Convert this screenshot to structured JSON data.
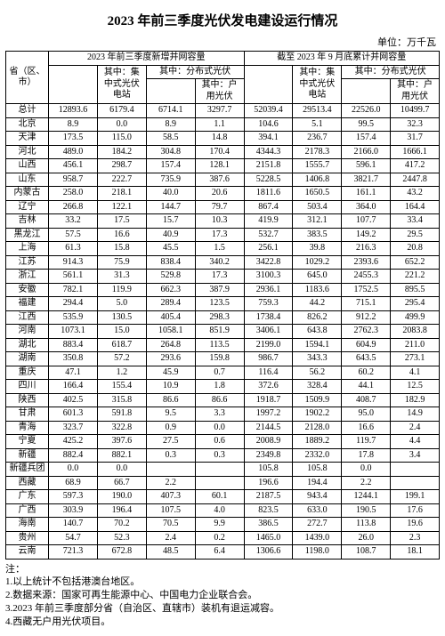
{
  "title": "2023 年前三季度光伏发电建设运行情况",
  "unit": "单位：万千瓦",
  "header_group_a": "2023 年前三季度新增并网容量",
  "header_group_b": "截至 2023 年 9 月底累计并网容量",
  "col_region": "省（区、市）",
  "col_a_sub1": "其中：集中式光伏电站",
  "col_a_sub2": "其中：分布式光伏",
  "col_a_sub2a": "其中：户用光伏",
  "col_b_sub1": "其中：集中式光伏电站",
  "col_b_sub2": "其中：分布式光伏",
  "col_b_sub2a": "其中：户用光伏",
  "rows": [
    {
      "r": "总计",
      "a": "12893.6",
      "a1": "6179.4",
      "a2": "6714.1",
      "a2a": "3297.7",
      "b": "52039.4",
      "b1": "29513.4",
      "b2": "22526.0",
      "b2a": "10499.7"
    },
    {
      "r": "北京",
      "a": "8.9",
      "a1": "0.0",
      "a2": "8.9",
      "a2a": "1.1",
      "b": "104.6",
      "b1": "5.1",
      "b2": "99.5",
      "b2a": "32.3"
    },
    {
      "r": "天津",
      "a": "173.5",
      "a1": "115.0",
      "a2": "58.5",
      "a2a": "14.8",
      "b": "394.1",
      "b1": "236.7",
      "b2": "157.4",
      "b2a": "31.7"
    },
    {
      "r": "河北",
      "a": "489.0",
      "a1": "184.2",
      "a2": "304.8",
      "a2a": "170.4",
      "b": "4344.3",
      "b1": "2178.3",
      "b2": "2166.0",
      "b2a": "1666.1"
    },
    {
      "r": "山西",
      "a": "456.1",
      "a1": "298.7",
      "a2": "157.4",
      "a2a": "128.1",
      "b": "2151.8",
      "b1": "1555.7",
      "b2": "596.1",
      "b2a": "417.2"
    },
    {
      "r": "山东",
      "a": "958.7",
      "a1": "222.7",
      "a2": "735.9",
      "a2a": "387.6",
      "b": "5228.5",
      "b1": "1406.8",
      "b2": "3821.7",
      "b2a": "2447.8"
    },
    {
      "r": "内蒙古",
      "a": "258.0",
      "a1": "218.1",
      "a2": "40.0",
      "a2a": "20.6",
      "b": "1811.6",
      "b1": "1650.5",
      "b2": "161.1",
      "b2a": "43.2"
    },
    {
      "r": "辽宁",
      "a": "266.8",
      "a1": "122.1",
      "a2": "144.7",
      "a2a": "79.7",
      "b": "867.4",
      "b1": "503.4",
      "b2": "364.0",
      "b2a": "164.4"
    },
    {
      "r": "吉林",
      "a": "33.2",
      "a1": "17.5",
      "a2": "15.7",
      "a2a": "10.3",
      "b": "419.9",
      "b1": "312.1",
      "b2": "107.7",
      "b2a": "33.4"
    },
    {
      "r": "黑龙江",
      "a": "57.5",
      "a1": "16.6",
      "a2": "40.9",
      "a2a": "17.3",
      "b": "532.7",
      "b1": "383.5",
      "b2": "149.2",
      "b2a": "29.5"
    },
    {
      "r": "上海",
      "a": "61.3",
      "a1": "15.8",
      "a2": "45.5",
      "a2a": "1.5",
      "b": "256.1",
      "b1": "39.8",
      "b2": "216.3",
      "b2a": "20.8"
    },
    {
      "r": "江苏",
      "a": "914.3",
      "a1": "75.9",
      "a2": "838.4",
      "a2a": "340.2",
      "b": "3422.8",
      "b1": "1029.2",
      "b2": "2393.6",
      "b2a": "652.2"
    },
    {
      "r": "浙江",
      "a": "561.1",
      "a1": "31.3",
      "a2": "529.8",
      "a2a": "17.3",
      "b": "3100.3",
      "b1": "645.0",
      "b2": "2455.3",
      "b2a": "221.2"
    },
    {
      "r": "安徽",
      "a": "782.1",
      "a1": "119.9",
      "a2": "662.3",
      "a2a": "387.9",
      "b": "2936.1",
      "b1": "1183.6",
      "b2": "1752.5",
      "b2a": "895.5"
    },
    {
      "r": "福建",
      "a": "294.4",
      "a1": "5.0",
      "a2": "289.4",
      "a2a": "123.5",
      "b": "759.3",
      "b1": "44.2",
      "b2": "715.1",
      "b2a": "295.4"
    },
    {
      "r": "江西",
      "a": "535.9",
      "a1": "130.5",
      "a2": "405.4",
      "a2a": "298.3",
      "b": "1738.4",
      "b1": "826.2",
      "b2": "912.2",
      "b2a": "499.9"
    },
    {
      "r": "河南",
      "a": "1073.1",
      "a1": "15.0",
      "a2": "1058.1",
      "a2a": "851.9",
      "b": "3406.1",
      "b1": "643.8",
      "b2": "2762.3",
      "b2a": "2083.8"
    },
    {
      "r": "湖北",
      "a": "883.4",
      "a1": "618.7",
      "a2": "264.8",
      "a2a": "113.5",
      "b": "2199.0",
      "b1": "1594.1",
      "b2": "604.9",
      "b2a": "211.0"
    },
    {
      "r": "湖南",
      "a": "350.8",
      "a1": "57.2",
      "a2": "293.6",
      "a2a": "159.8",
      "b": "986.7",
      "b1": "343.3",
      "b2": "643.5",
      "b2a": "273.1"
    },
    {
      "r": "重庆",
      "a": "47.1",
      "a1": "1.2",
      "a2": "45.9",
      "a2a": "0.7",
      "b": "116.4",
      "b1": "56.2",
      "b2": "60.2",
      "b2a": "4.1"
    },
    {
      "r": "四川",
      "a": "166.4",
      "a1": "155.4",
      "a2": "10.9",
      "a2a": "1.8",
      "b": "372.6",
      "b1": "328.4",
      "b2": "44.1",
      "b2a": "12.5"
    },
    {
      "r": "陕西",
      "a": "402.5",
      "a1": "315.8",
      "a2": "86.6",
      "a2a": "86.6",
      "b": "1918.7",
      "b1": "1509.9",
      "b2": "408.7",
      "b2a": "182.9"
    },
    {
      "r": "甘肃",
      "a": "601.3",
      "a1": "591.8",
      "a2": "9.5",
      "a2a": "3.3",
      "b": "1997.2",
      "b1": "1902.2",
      "b2": "95.0",
      "b2a": "14.9"
    },
    {
      "r": "青海",
      "a": "323.7",
      "a1": "322.8",
      "a2": "0.9",
      "a2a": "0.0",
      "b": "2144.5",
      "b1": "2128.0",
      "b2": "16.6",
      "b2a": "2.4"
    },
    {
      "r": "宁夏",
      "a": "425.2",
      "a1": "397.6",
      "a2": "27.5",
      "a2a": "0.6",
      "b": "2008.9",
      "b1": "1889.2",
      "b2": "119.7",
      "b2a": "4.4"
    },
    {
      "r": "新疆",
      "a": "882.4",
      "a1": "882.1",
      "a2": "0.3",
      "a2a": "0.3",
      "b": "2349.8",
      "b1": "2332.0",
      "b2": "17.8",
      "b2a": "3.4"
    },
    {
      "r": "新疆兵团",
      "a": "0.0",
      "a1": "0.0",
      "a2": "",
      "a2a": "",
      "b": "105.8",
      "b1": "105.8",
      "b2": "0.0",
      "b2a": ""
    },
    {
      "r": "西藏",
      "a": "68.9",
      "a1": "66.7",
      "a2": "2.2",
      "a2a": "",
      "b": "196.6",
      "b1": "194.4",
      "b2": "2.2",
      "b2a": ""
    },
    {
      "r": "广东",
      "a": "597.3",
      "a1": "190.0",
      "a2": "407.3",
      "a2a": "60.1",
      "b": "2187.5",
      "b1": "943.4",
      "b2": "1244.1",
      "b2a": "199.1"
    },
    {
      "r": "广西",
      "a": "303.9",
      "a1": "196.4",
      "a2": "107.5",
      "a2a": "4.0",
      "b": "823.5",
      "b1": "633.0",
      "b2": "190.5",
      "b2a": "17.6"
    },
    {
      "r": "海南",
      "a": "140.7",
      "a1": "70.2",
      "a2": "70.5",
      "a2a": "9.9",
      "b": "386.5",
      "b1": "272.7",
      "b2": "113.8",
      "b2a": "19.6"
    },
    {
      "r": "贵州",
      "a": "54.7",
      "a1": "52.3",
      "a2": "2.4",
      "a2a": "0.2",
      "b": "1465.0",
      "b1": "1439.0",
      "b2": "26.0",
      "b2a": "2.3"
    },
    {
      "r": "云南",
      "a": "721.3",
      "a1": "672.8",
      "a2": "48.5",
      "a2a": "6.4",
      "b": "1306.6",
      "b1": "1198.0",
      "b2": "108.7",
      "b2a": "18.1"
    }
  ],
  "notes_header": "注：",
  "notes": [
    "1.以上统计不包括港澳台地区。",
    "2.数据来源：国家可再生能源中心、中国电力企业联合会。",
    "3.2023 年前三季度部分省（自治区、直辖市）装机有退运减容。",
    "4.西藏无户用光伏项目。"
  ]
}
